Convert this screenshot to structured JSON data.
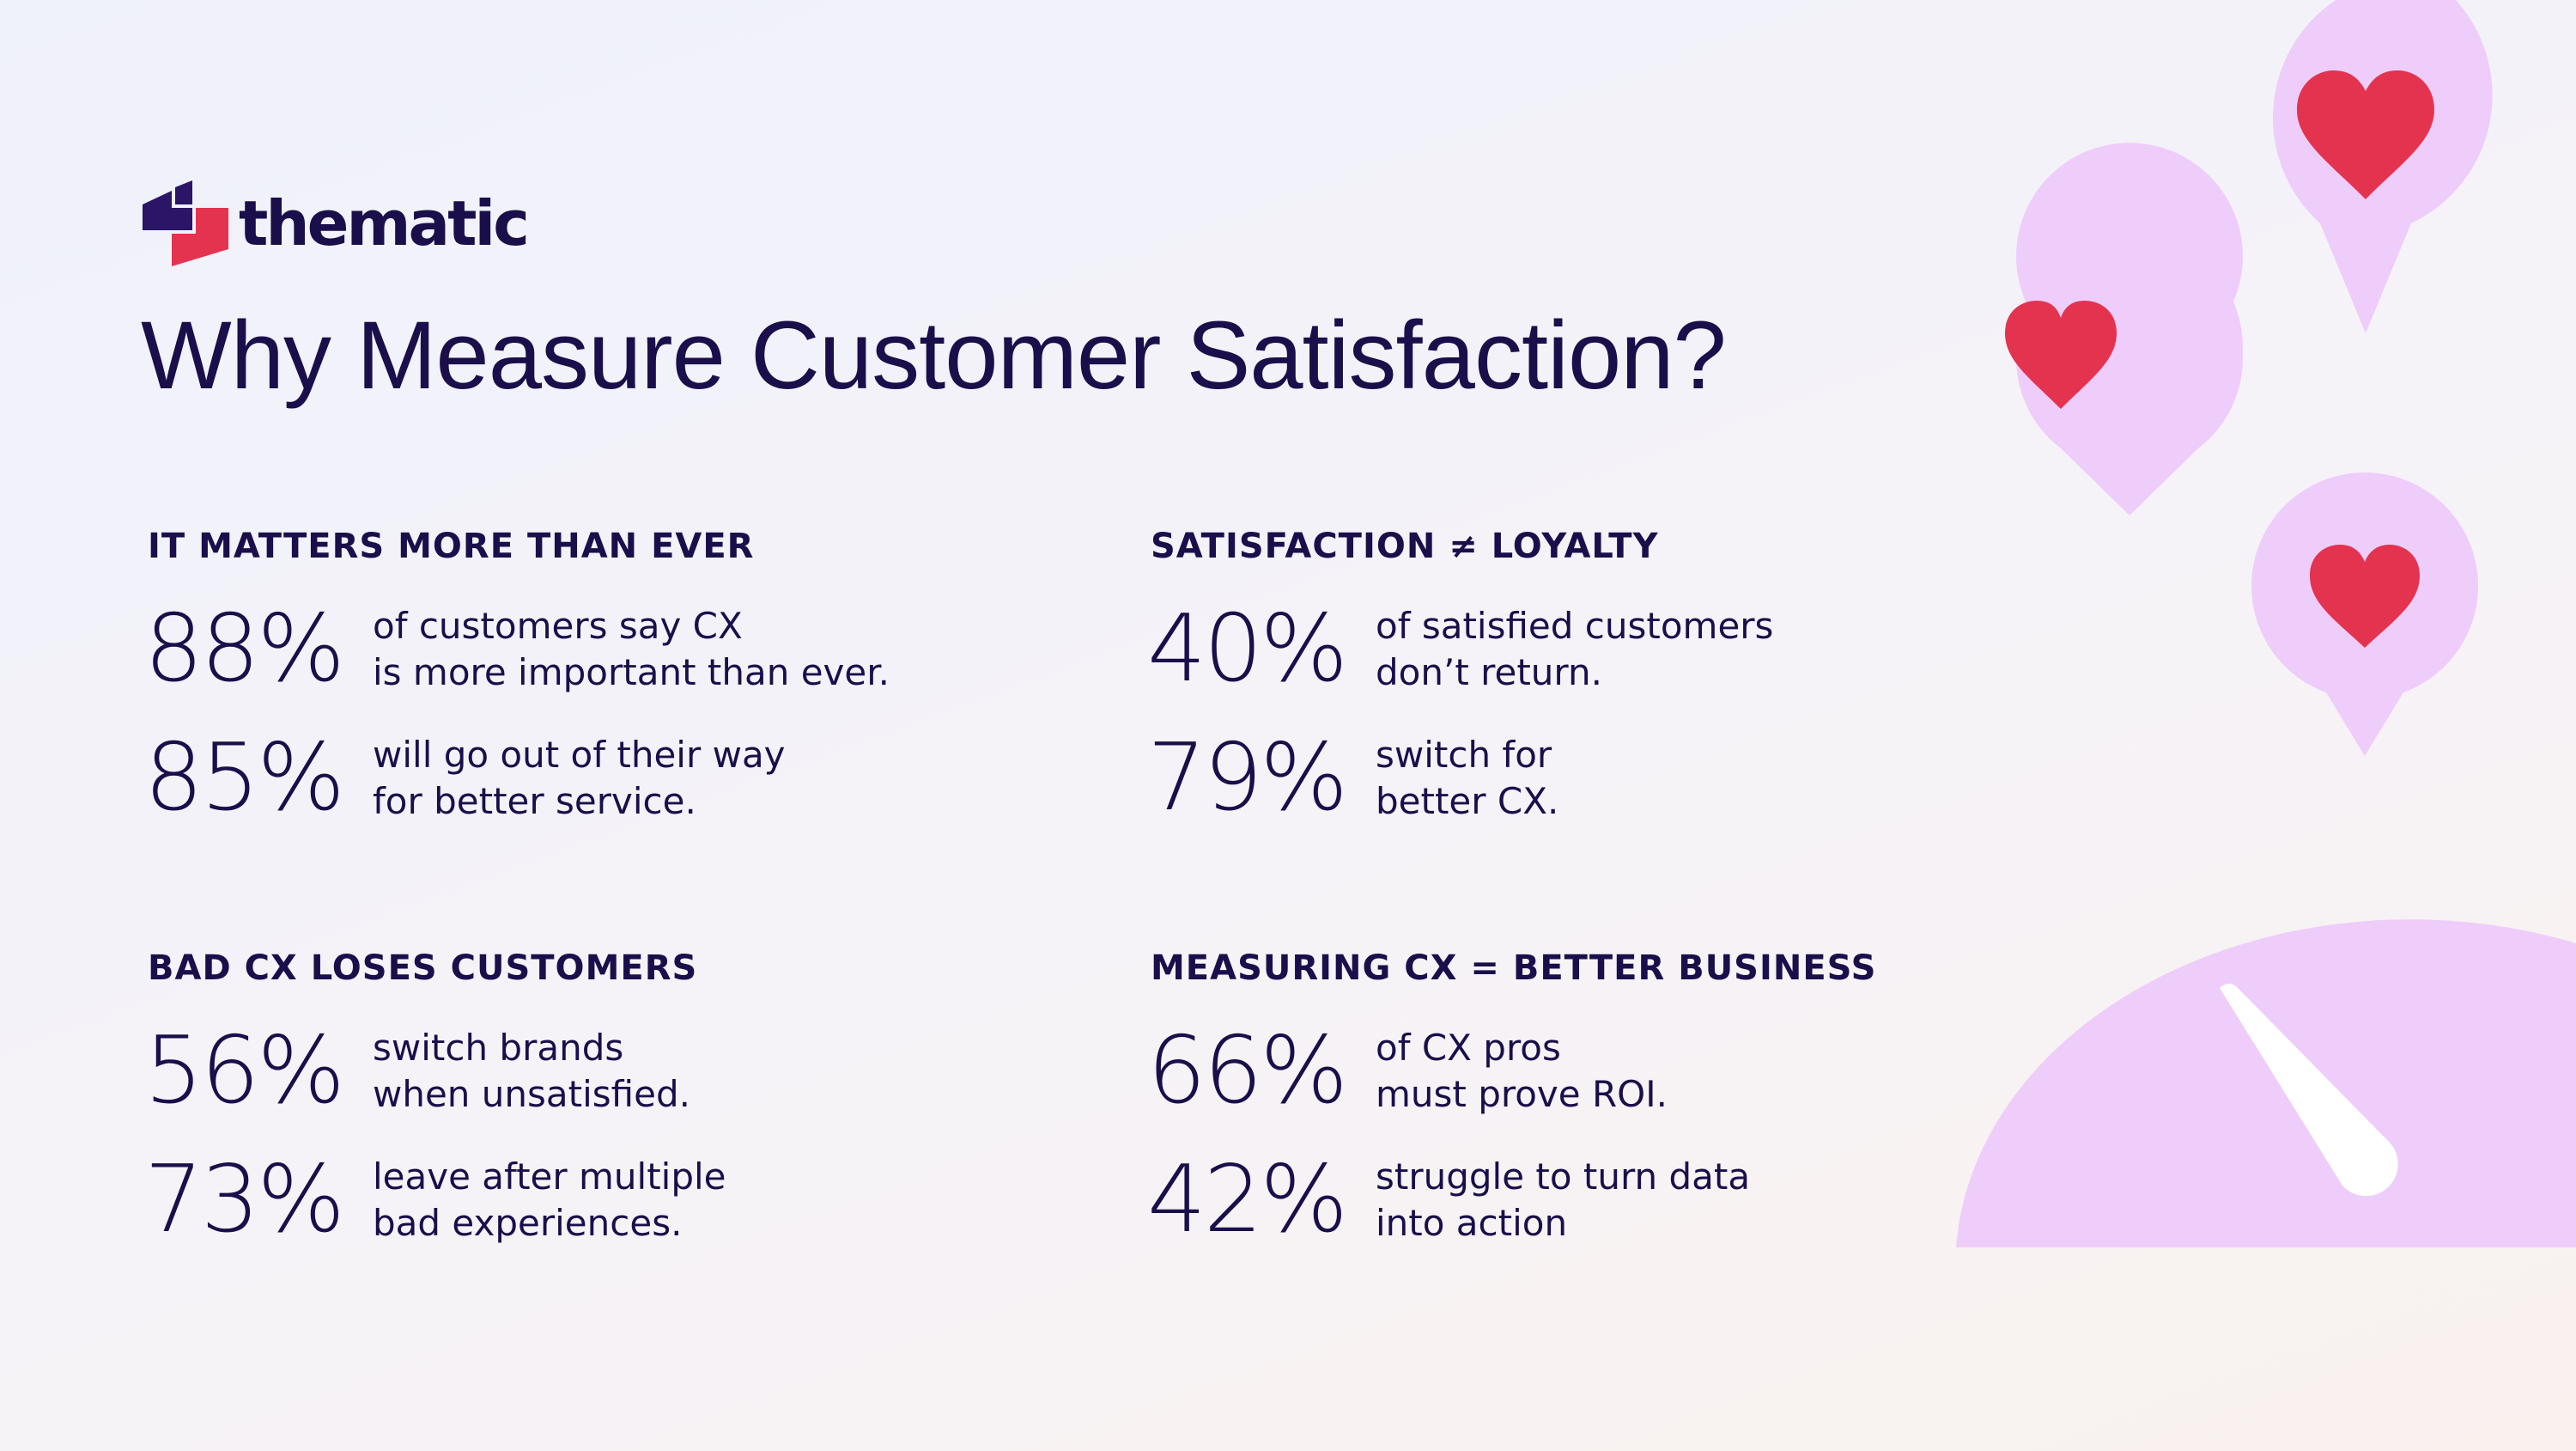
{
  "brand": {
    "name": "thematic"
  },
  "title": "Why Measure Customer Satisfaction?",
  "colors": {
    "text": "#1a0f4a",
    "accent_red": "#e4334f",
    "lavender": "#efcdfa",
    "logo_navy": "#2a1567"
  },
  "icons": [
    "thematic-logo-icon",
    "heart-pin-icon",
    "gauge-icon"
  ],
  "sections": [
    {
      "heading": "IT MATTERS MORE THAN EVER",
      "stats": [
        {
          "value": "88%",
          "lines": [
            "of customers say CX",
            "is more important than ever."
          ]
        },
        {
          "value": "85%",
          "lines": [
            "will go out of their way",
            "for better service."
          ]
        }
      ]
    },
    {
      "heading": "SATISFACTION ≠ LOYALTY",
      "stats": [
        {
          "value": "40%",
          "lines": [
            "of satisfied customers",
            "don’t return."
          ]
        },
        {
          "value": "79%",
          "lines": [
            "switch for",
            "better CX."
          ]
        }
      ]
    },
    {
      "heading": "BAD CX LOSES CUSTOMERS",
      "stats": [
        {
          "value": "56%",
          "lines": [
            "switch brands",
            "when unsatisfied."
          ]
        },
        {
          "value": "73%",
          "lines": [
            "leave after multiple",
            "bad experiences."
          ]
        }
      ]
    },
    {
      "heading": "MEASURING CX = BETTER BUSINESS",
      "stats": [
        {
          "value": "66%",
          "lines": [
            "of CX pros",
            "must prove ROI."
          ]
        },
        {
          "value": "42%",
          "lines": [
            "struggle to turn data",
            "into action"
          ]
        }
      ]
    }
  ]
}
